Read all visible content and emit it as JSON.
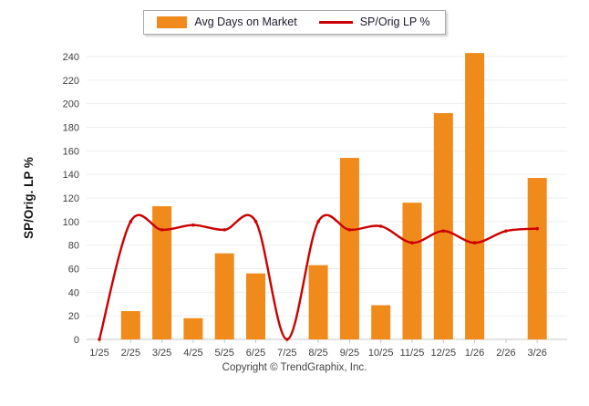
{
  "legend": {
    "bar_label": "Avg Days on Market",
    "line_label": "SP/Orig LP %"
  },
  "footer": {
    "copyright": "Copyright © TrendGraphix, Inc."
  },
  "colors": {
    "bar": "#F08A1A",
    "line": "#CC0000",
    "grid": "#EDEDED",
    "axis_line": "#C6C6C6",
    "axis_text": "#3F3F3F",
    "ylabel_text": "#141414"
  },
  "chart_data": {
    "type": "bar",
    "categories": [
      "1/25",
      "2/25",
      "3/25",
      "4/25",
      "5/25",
      "6/25",
      "7/25",
      "8/25",
      "9/25",
      "10/25",
      "11/25",
      "12/25",
      "1/26",
      "2/26",
      "3/26"
    ],
    "series": [
      {
        "name": "Avg Days on Market",
        "type": "bar",
        "color": "#F08A1A",
        "values": [
          0,
          24,
          113,
          18,
          73,
          56,
          0,
          63,
          154,
          29,
          116,
          192,
          243,
          0,
          137
        ]
      },
      {
        "name": "SP/Orig LP %",
        "type": "line",
        "color": "#CC0000",
        "values": [
          0,
          100,
          93,
          97,
          93,
          100,
          0,
          100,
          93,
          96,
          82,
          92,
          82,
          92,
          94
        ]
      }
    ],
    "title": "",
    "xlabel": "",
    "ylabel": "SP/Orig. LP %",
    "ylim": [
      0,
      240
    ],
    "ytick_step": 20,
    "grid": "horizontal",
    "legend_position": "top-center"
  }
}
